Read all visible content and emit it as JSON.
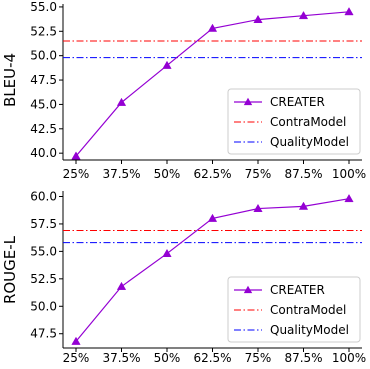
{
  "chart_data": [
    {
      "type": "line",
      "categories": [
        "25%",
        "37.5%",
        "50%",
        "62.5%",
        "75%",
        "87.5%",
        "100%"
      ],
      "series": [
        {
          "name": "CREATER",
          "values": [
            39.7,
            45.2,
            49.0,
            52.8,
            53.7,
            54.1,
            54.5
          ],
          "color": "#9400D3",
          "marker": "triangle"
        }
      ],
      "reference_lines": [
        {
          "name": "ContraModel",
          "value": 51.5,
          "color": "#FF0000",
          "style": "dash-dot"
        },
        {
          "name": "QualityModel",
          "value": 49.8,
          "color": "#0000FF",
          "style": "dash-dot"
        }
      ],
      "ylabel": "BLEU-4",
      "xlabel": "",
      "ylim": [
        39.3,
        55.3
      ],
      "yticks": [
        "40.0",
        "42.5",
        "45.0",
        "47.5",
        "50.0",
        "52.5",
        "55.0"
      ],
      "legend": "lower-right",
      "grid": false
    },
    {
      "type": "line",
      "categories": [
        "25%",
        "37.5%",
        "50%",
        "62.5%",
        "75%",
        "87.5%",
        "100%"
      ],
      "series": [
        {
          "name": "CREATER",
          "values": [
            46.8,
            51.8,
            54.8,
            58.0,
            58.9,
            59.1,
            59.8
          ],
          "color": "#9400D3",
          "marker": "triangle"
        }
      ],
      "reference_lines": [
        {
          "name": "ContraModel",
          "value": 56.9,
          "color": "#FF0000",
          "style": "dash-dot"
        },
        {
          "name": "QualityModel",
          "value": 55.8,
          "color": "#0000FF",
          "style": "dash-dot"
        }
      ],
      "ylabel": "ROUGE-L",
      "xlabel": "",
      "ylim": [
        46.2,
        60.5
      ],
      "yticks": [
        "47.5",
        "50.0",
        "52.5",
        "55.0",
        "57.5",
        "60.0"
      ],
      "legend": "lower-right",
      "grid": false
    }
  ]
}
